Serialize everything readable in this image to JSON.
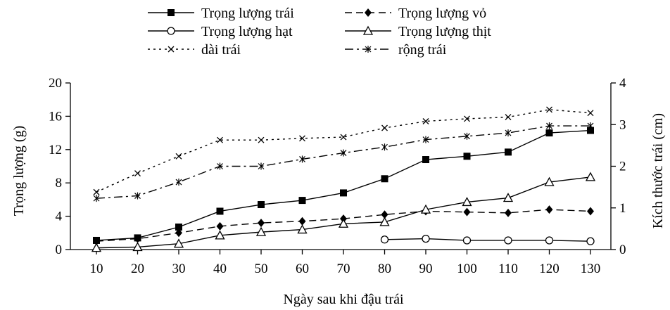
{
  "chart_data": {
    "type": "line",
    "title": "",
    "xlabel": "Ngày sau khi đậu trái",
    "ylabel": "Trọng lượng (g)",
    "y2label": "Kích thước trái (cm)",
    "x": [
      10,
      20,
      30,
      40,
      50,
      60,
      70,
      80,
      90,
      100,
      110,
      120,
      130
    ],
    "ylim": [
      0,
      20
    ],
    "yticks": [
      0,
      4,
      8,
      12,
      16,
      20
    ],
    "y2lim": [
      0,
      4
    ],
    "y2ticks": [
      0,
      1,
      2,
      3,
      4
    ],
    "grid": false,
    "legend_position": "top",
    "series": [
      {
        "name": "Trọng lượng trái",
        "axis": "left",
        "style": "solid",
        "marker": "square-filled",
        "values": [
          1.1,
          1.4,
          2.7,
          4.6,
          5.4,
          5.9,
          6.8,
          8.5,
          10.8,
          11.2,
          11.7,
          14.0,
          14.3
        ]
      },
      {
        "name": "Trọng lượng vỏ",
        "axis": "left",
        "style": "dashed",
        "marker": "diamond-filled",
        "values": [
          1.0,
          1.3,
          2.0,
          2.8,
          3.2,
          3.4,
          3.7,
          4.2,
          4.6,
          4.5,
          4.4,
          4.8,
          4.6
        ]
      },
      {
        "name": "Trọng lượng hạt",
        "axis": "left",
        "style": "solid",
        "marker": "circle-open",
        "values": [
          null,
          null,
          null,
          null,
          null,
          null,
          null,
          1.2,
          1.3,
          1.1,
          1.1,
          1.1,
          1.0
        ]
      },
      {
        "name": "Trọng lượng thịt",
        "axis": "left",
        "style": "solid",
        "marker": "triangle-open",
        "values": [
          0.2,
          0.3,
          0.7,
          1.7,
          2.1,
          2.4,
          3.1,
          3.3,
          4.8,
          5.7,
          6.2,
          8.1,
          8.7
        ]
      },
      {
        "name": "dài trái",
        "axis": "right",
        "style": "dotted",
        "marker": "x",
        "values": [
          1.38,
          1.83,
          2.24,
          2.63,
          2.63,
          2.67,
          2.7,
          2.92,
          3.08,
          3.14,
          3.18,
          3.36,
          3.28
        ]
      },
      {
        "name": "rộng trái",
        "axis": "right",
        "style": "dashdot",
        "marker": "asterisk",
        "values": [
          1.23,
          1.29,
          1.62,
          2.0,
          2.0,
          2.17,
          2.32,
          2.46,
          2.64,
          2.72,
          2.8,
          2.97,
          2.97
        ]
      }
    ]
  }
}
